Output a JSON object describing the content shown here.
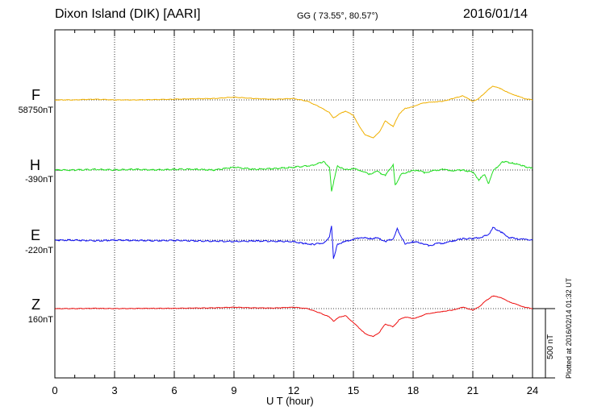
{
  "header": {
    "title": "Dixon Island (DIK)  [AARI]",
    "coords": "GG ( 73.55°,  80.57°)",
    "date": "2016/01/14"
  },
  "footer": {
    "xlabel": "U T (hour)",
    "plotted": "Plotted at 2016/02/14 01:32 UT",
    "scale_label": "500 nT"
  },
  "channels": [
    {
      "name": "F",
      "base": "58750nT",
      "color": "#f0b000"
    },
    {
      "name": "H",
      "base": "-390nT",
      "color": "#22dd22"
    },
    {
      "name": "E",
      "base": "-220nT",
      "color": "#1010ee"
    },
    {
      "name": "Z",
      "base": "160nT",
      "color": "#ee1010"
    }
  ],
  "chart_data": {
    "type": "line",
    "xlabel": "U T (hour)",
    "xlim": [
      0,
      24
    ],
    "x_ticks": [
      "0",
      "3",
      "6",
      "9",
      "12",
      "15",
      "18",
      "21",
      "24"
    ],
    "scale_nT": 500,
    "series": [
      {
        "name": "F",
        "unit": "nT",
        "x": [
          0,
          1,
          2,
          3,
          4,
          5,
          6,
          7,
          8,
          9,
          10,
          11,
          12,
          12.7,
          13.3,
          13.8,
          14.0,
          14.3,
          14.6,
          15.0,
          15.3,
          15.6,
          16.0,
          16.3,
          16.6,
          17.0,
          17.3,
          17.6,
          18.0,
          18.3,
          18.6,
          19.0,
          19.5,
          20.0,
          20.5,
          21.0,
          21.3,
          21.6,
          22.0,
          22.4,
          22.8,
          23.2,
          23.6,
          24
        ],
        "y": [
          58750,
          58750,
          58755,
          58750,
          58750,
          58752,
          58755,
          58758,
          58760,
          58770,
          58760,
          58755,
          58760,
          58740,
          58700,
          58660,
          58620,
          58650,
          58670,
          58640,
          58560,
          58500,
          58480,
          58520,
          58600,
          58560,
          58650,
          58690,
          58700,
          58720,
          58730,
          58735,
          58740,
          58760,
          58780,
          58740,
          58760,
          58800,
          58850,
          58830,
          58800,
          58780,
          58760,
          58750
        ]
      },
      {
        "name": "H",
        "unit": "nT",
        "x": [
          0,
          1,
          2,
          3,
          4,
          5,
          6,
          7,
          8,
          9,
          10,
          11,
          12,
          13,
          13.5,
          13.8,
          13.9,
          14.2,
          14.6,
          15.0,
          15.4,
          15.8,
          16.2,
          16.6,
          17.0,
          17.1,
          17.4,
          17.8,
          18.2,
          18.6,
          19.0,
          19.5,
          20.0,
          20.5,
          21.0,
          21.3,
          21.6,
          21.8,
          22.0,
          22.5,
          23.0,
          23.5,
          24
        ],
        "y": [
          -390,
          -390,
          -385,
          -390,
          -385,
          -390,
          -385,
          -385,
          -390,
          -370,
          -385,
          -380,
          -370,
          -355,
          -330,
          -370,
          -540,
          -360,
          -390,
          -380,
          -395,
          -420,
          -400,
          -430,
          -350,
          -500,
          -420,
          -400,
          -390,
          -410,
          -395,
          -385,
          -395,
          -390,
          -405,
          -460,
          -420,
          -490,
          -400,
          -330,
          -340,
          -360,
          -380
        ]
      },
      {
        "name": "E",
        "unit": "nT",
        "x": [
          0,
          1,
          2,
          3,
          4,
          5,
          6,
          7,
          8,
          9,
          10,
          11,
          12,
          12.5,
          13.0,
          13.5,
          13.8,
          13.9,
          14.0,
          14.2,
          14.6,
          15.0,
          15.4,
          15.8,
          16.2,
          16.6,
          17.0,
          17.2,
          17.6,
          18.0,
          18.4,
          18.8,
          19.2,
          19.6,
          20.0,
          20.5,
          21.0,
          21.4,
          21.8,
          22.0,
          22.4,
          22.8,
          23.2,
          23.6,
          24
        ],
        "y": [
          -220,
          -220,
          -225,
          -220,
          -222,
          -224,
          -222,
          -225,
          -228,
          -230,
          -226,
          -228,
          -230,
          -245,
          -250,
          -240,
          -200,
          -115,
          -350,
          -250,
          -230,
          -215,
          -200,
          -210,
          -205,
          -230,
          -210,
          -140,
          -250,
          -230,
          -240,
          -260,
          -245,
          -240,
          -225,
          -210,
          -210,
          -200,
          -180,
          -130,
          -160,
          -200,
          -210,
          -215,
          -220
        ]
      },
      {
        "name": "Z",
        "unit": "nT",
        "x": [
          0,
          1,
          2,
          3,
          4,
          5,
          6,
          7,
          8,
          9,
          10,
          11,
          12,
          12.7,
          13.3,
          13.8,
          14.0,
          14.3,
          14.6,
          15.0,
          15.3,
          15.6,
          16.0,
          16.3,
          16.6,
          17.0,
          17.3,
          17.6,
          18.0,
          18.3,
          18.6,
          19.0,
          19.5,
          20.0,
          20.5,
          21.0,
          21.3,
          21.6,
          22.0,
          22.4,
          22.8,
          23.2,
          23.6,
          24
        ],
        "y": [
          160,
          160,
          162,
          160,
          161,
          162,
          162,
          164,
          165,
          170,
          165,
          164,
          170,
          160,
          130,
          100,
          70,
          100,
          110,
          60,
          20,
          -20,
          -40,
          -10,
          50,
          30,
          80,
          100,
          90,
          100,
          120,
          130,
          140,
          150,
          170,
          150,
          170,
          210,
          250,
          240,
          210,
          190,
          170,
          160
        ]
      }
    ]
  }
}
